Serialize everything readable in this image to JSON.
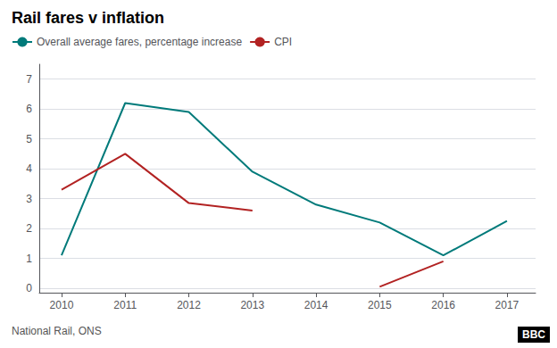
{
  "chart_data": {
    "type": "line",
    "title": "Rail fares v inflation",
    "x": [
      2010,
      2011,
      2012,
      2013,
      2014,
      2015,
      2016,
      2017
    ],
    "series": [
      {
        "name": "Overall average fares, percentage increase",
        "color": "#007a7a",
        "values": [
          1.1,
          6.2,
          5.9,
          3.9,
          2.8,
          2.2,
          1.1,
          2.25
        ]
      },
      {
        "name": "CPI",
        "color": "#b22222",
        "values": [
          3.3,
          4.5,
          2.85,
          2.6,
          null,
          0.05,
          0.9,
          null
        ]
      }
    ],
    "xlim": [
      2009.65,
      2017.45
    ],
    "xticks": [
      2010,
      2011,
      2012,
      2013,
      2014,
      2015,
      2016,
      2017
    ],
    "ylim": [
      -0.15,
      7.5
    ],
    "yticks": [
      0,
      1,
      2,
      3,
      4,
      5,
      6,
      7
    ],
    "grid": true,
    "legend": "upper left",
    "annotations": [
      "National Rail, ONS",
      "BBC"
    ]
  }
}
